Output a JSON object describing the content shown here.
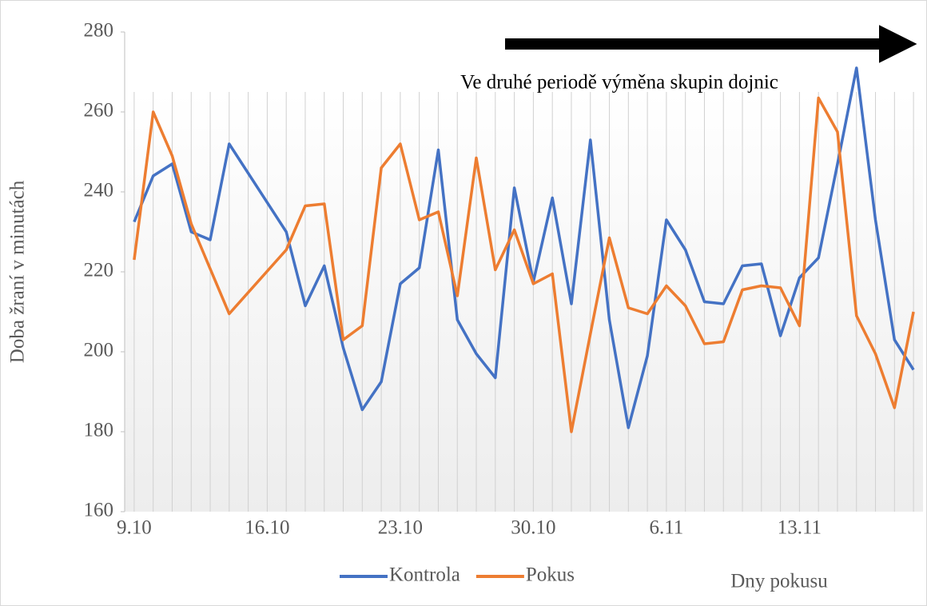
{
  "chart_data": {
    "type": "line",
    "y_label": "Doba žraní v minutách",
    "x_label": "Dny pokusu",
    "annotation": "Ve druhé periodě výměna skupin dojnic",
    "categories": [
      "9.10",
      null,
      null,
      null,
      null,
      null,
      null,
      "16.10",
      null,
      null,
      null,
      null,
      null,
      null,
      "23.10",
      null,
      null,
      null,
      null,
      null,
      null,
      "30.10",
      null,
      null,
      null,
      null,
      null,
      null,
      "6.11",
      null,
      null,
      null,
      null,
      null,
      null,
      "13.11",
      null,
      null,
      null,
      null,
      null,
      null
    ],
    "series": [
      {
        "name": "Kontrola",
        "color": "#4472c4",
        "values": [
          232.5,
          244,
          247,
          230,
          228,
          252,
          null,
          null,
          230,
          211.5,
          221.5,
          201,
          185.5,
          192.5,
          217,
          221,
          250.5,
          208,
          199.5,
          193.5,
          241,
          217.5,
          238.5,
          212,
          253,
          208,
          181,
          199,
          233,
          225.5,
          212.5,
          212,
          221.5,
          222,
          204,
          218.5,
          223.5,
          247,
          271,
          233,
          203,
          195.5
        ]
      },
      {
        "name": "Pokus",
        "color": "#ed7d31",
        "values": [
          223,
          260,
          249,
          232,
          null,
          209.5,
          null,
          null,
          225.5,
          236.5,
          237,
          203,
          206.5,
          246,
          252,
          233,
          235,
          214,
          248.5,
          220.5,
          230.5,
          217,
          219.5,
          180,
          204.5,
          228.5,
          211,
          209.5,
          216.5,
          211.5,
          202,
          202.5,
          215.5,
          216.5,
          216,
          206.5,
          263.5,
          255,
          209,
          199.5,
          186,
          210
        ]
      }
    ],
    "ylim": [
      160,
      280
    ],
    "yticks": [
      160,
      180,
      200,
      220,
      240,
      260,
      280
    ],
    "grid": "vertical",
    "legend": "bottom"
  }
}
